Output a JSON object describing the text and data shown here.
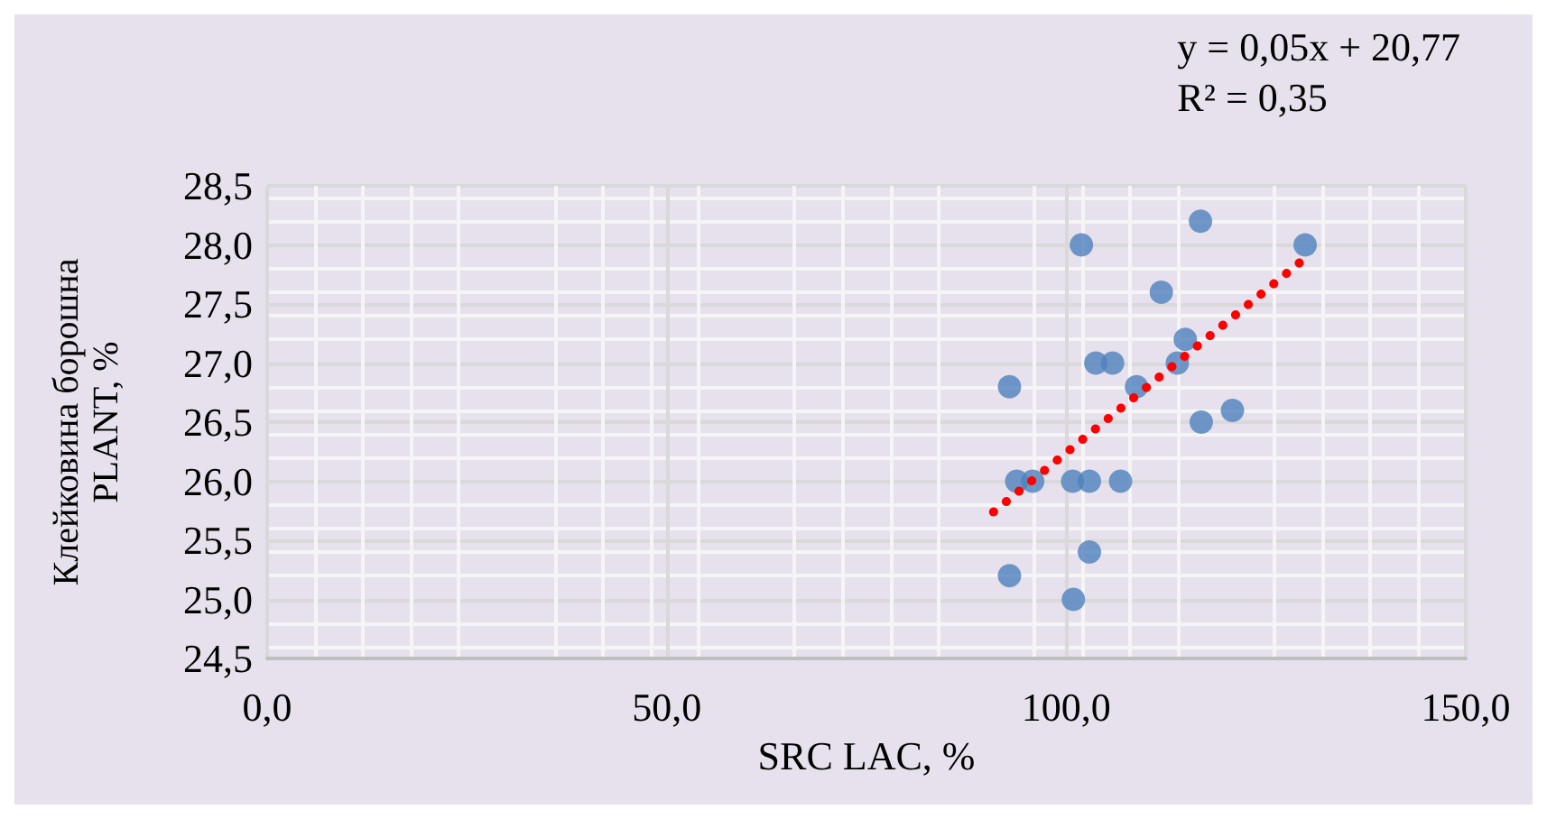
{
  "chart_data": {
    "type": "scatter",
    "xlabel": "SRC LAC, %",
    "ylabel": "Клейковина борошна\nPLANT, %",
    "annotations": [
      "y = 0,05x + 20,77",
      "R² = 0,35"
    ],
    "series": [
      {
        "color": "#4f81bd",
        "marker": "circle",
        "x": [
          116.8,
          101.9,
          129.9,
          111.9,
          114.9,
          113.9,
          103.7,
          105.8,
          92.9,
          108.8,
          120.8,
          116.9,
          93.8,
          95.8,
          100.8,
          102.9,
          106.8,
          102.9,
          92.9,
          100.9
        ],
        "values": [
          28.2,
          28.0,
          28.0,
          27.6,
          27.2,
          27.0,
          27.0,
          27.0,
          26.8,
          26.8,
          26.6,
          26.5,
          26.0,
          26.0,
          26.0,
          26.0,
          26.0,
          25.4,
          25.2,
          25.0
        ]
      },
      {
        "type": "line",
        "color": "#ff0000",
        "line_style": "dotted",
        "marker": "none",
        "x": [
          90.9,
          130.5
        ],
        "values": [
          25.74,
          27.92
        ]
      }
    ],
    "xlim": [
      0,
      150
    ],
    "xticks": [
      {
        "value": 0,
        "label": "0,0"
      },
      {
        "value": 50,
        "label": "50,0"
      },
      {
        "value": 100,
        "label": "100,0"
      },
      {
        "value": 150,
        "label": "150,0"
      }
    ],
    "ylim": [
      24.5,
      28.5
    ],
    "yticks": [
      {
        "value": 24.5,
        "label": "24,5"
      },
      {
        "value": 25,
        "label": "25,0"
      },
      {
        "value": 25.5,
        "label": "25,5"
      },
      {
        "value": 26,
        "label": "26,0"
      },
      {
        "value": 26.5,
        "label": "26,5"
      },
      {
        "value": 27,
        "label": "27,0"
      },
      {
        "value": 27.5,
        "label": "27,5"
      },
      {
        "value": 28,
        "label": "28,0"
      },
      {
        "value": 28.5,
        "label": "28,5"
      }
    ],
    "grid": true
  }
}
